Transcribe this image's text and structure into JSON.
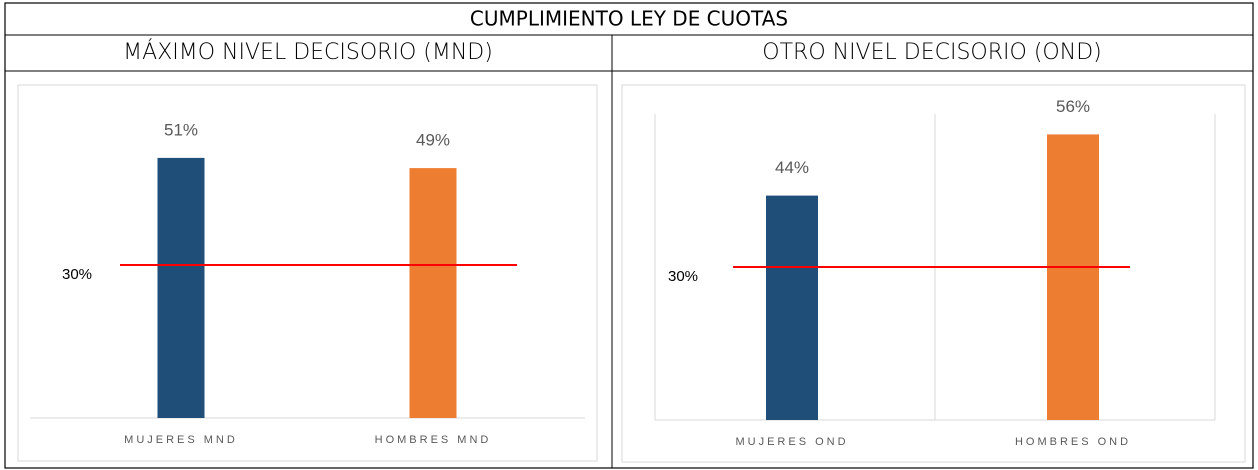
{
  "title": "CUMPLIMIENTO LEY DE CUOTAS",
  "chart_data": [
    {
      "type": "bar",
      "title": "MÁXIMO NIVEL DECISORIO (MND)",
      "categories": [
        "MUJERES MND",
        "HOMBRES MND"
      ],
      "values": [
        51,
        49
      ],
      "value_labels": [
        "51%",
        "49%"
      ],
      "colors": [
        "#1f4e79",
        "#ed7d31"
      ],
      "ylim": [
        0,
        60
      ],
      "reference_line": {
        "value": 30,
        "label": "30%",
        "color": "#ff0000"
      },
      "grid": false
    },
    {
      "type": "bar",
      "title": "OTRO NIVEL DECISORIO (OND)",
      "categories": [
        "MUJERES OND",
        "HOMBRES OND"
      ],
      "values": [
        44,
        56
      ],
      "value_labels": [
        "44%",
        "56%"
      ],
      "colors": [
        "#1f4e79",
        "#ed7d31"
      ],
      "ylim": [
        0,
        60
      ],
      "reference_line": {
        "value": 30,
        "label": "30%",
        "color": "#ff0000"
      },
      "grid": true
    }
  ]
}
